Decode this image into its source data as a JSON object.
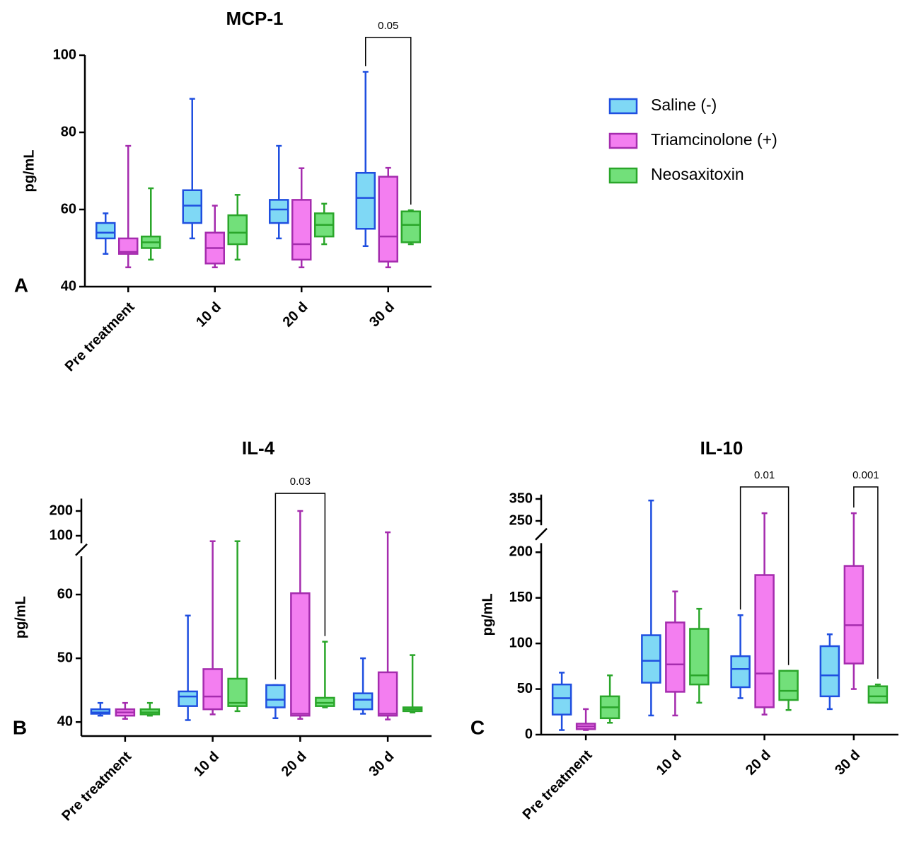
{
  "chart_data": [
    {
      "type": "box",
      "panel": "A",
      "title": "MCP-1",
      "ylabel": "pg/mL",
      "categories": [
        "Pre treatment",
        "10 d",
        "20 d",
        "30 d"
      ],
      "segments": [
        {
          "ylim": [
            40,
            100
          ],
          "yticks": [
            40,
            60,
            80,
            100
          ]
        }
      ],
      "series": [
        {
          "name": "Saline (-)",
          "color": "#7fd8f5",
          "edge": "#1f4fe0",
          "values": [
            {
              "min": 48.5,
              "q1": 52.5,
              "median": 54,
              "q3": 56.5,
              "max": 59
            },
            {
              "min": 52.5,
              "q1": 56.5,
              "median": 61,
              "q3": 65,
              "max": 88.7
            },
            {
              "min": 52.5,
              "q1": 56.5,
              "median": 60,
              "q3": 62.5,
              "max": 76.5
            },
            {
              "min": 50.5,
              "q1": 55,
              "median": 63,
              "q3": 69.5,
              "max": 95.7
            }
          ]
        },
        {
          "name": "Triamcinolone (+)",
          "color": "#f37ef0",
          "edge": "#a52cae",
          "values": [
            {
              "min": 45,
              "q1": 48.5,
              "median": 49,
              "q3": 52.5,
              "max": 76.5
            },
            {
              "min": 45,
              "q1": 46,
              "median": 50,
              "q3": 54,
              "max": 61
            },
            {
              "min": 45,
              "q1": 47,
              "median": 51,
              "q3": 62.5,
              "max": 70.7
            },
            {
              "min": 45,
              "q1": 46.5,
              "median": 53,
              "q3": 68.5,
              "max": 70.8
            }
          ]
        },
        {
          "name": "Neosaxitoxin",
          "color": "#72e07a",
          "edge": "#2aa62a",
          "values": [
            {
              "min": 47,
              "q1": 50,
              "median": 51.5,
              "q3": 53,
              "max": 65.5
            },
            {
              "min": 47,
              "q1": 51,
              "median": 54,
              "q3": 58.5,
              "max": 63.8
            },
            {
              "min": 51,
              "q1": 53,
              "median": 56,
              "q3": 59,
              "max": 61.5
            },
            {
              "min": 51,
              "q1": 51.5,
              "median": 56,
              "q3": 59.5,
              "max": 59.8
            }
          ]
        }
      ],
      "annotations": [
        {
          "text": "0.05",
          "category": 3,
          "from": 0,
          "to": 2,
          "y": 104.6
        }
      ]
    },
    {
      "type": "box",
      "panel": "B",
      "title": "IL-4",
      "ylabel": "pg/mL",
      "categories": [
        "Pre treatment",
        "10 d",
        "20 d",
        "30 d"
      ],
      "segments": [
        {
          "ylim": [
            37.8,
            66
          ],
          "yticks": [
            40,
            50,
            60
          ]
        },
        {
          "ylim": [
            70,
            250
          ],
          "yticks": [
            100,
            200
          ]
        }
      ],
      "series": [
        {
          "color": "#7fd8f5",
          "edge": "#1f4fe0",
          "values": [
            {
              "min": 41,
              "q1": 41.3,
              "median": 41.5,
              "q3": 42,
              "max": 43
            },
            {
              "min": 40.3,
              "q1": 42.5,
              "median": 44,
              "q3": 44.8,
              "max": 56.7
            },
            {
              "min": 40.6,
              "q1": 42.3,
              "median": 43.5,
              "q3": 45.8,
              "max": 45.8
            },
            {
              "min": 41.3,
              "q1": 42,
              "median": 43.5,
              "q3": 44.5,
              "max": 50
            }
          ]
        },
        {
          "color": "#f37ef0",
          "edge": "#a52cae",
          "values": [
            {
              "min": 40.5,
              "q1": 41,
              "median": 41.5,
              "q3": 42,
              "max": 43
            },
            {
              "min": 41.2,
              "q1": 42,
              "median": 44,
              "q3": 48.3,
              "max": 78
            },
            {
              "min": 40.5,
              "q1": 41,
              "median": 41.3,
              "q3": 60.2,
              "max": 200
            },
            {
              "min": 40.4,
              "q1": 41,
              "median": 41.3,
              "q3": 47.8,
              "max": 114
            }
          ]
        },
        {
          "color": "#72e07a",
          "edge": "#2aa62a",
          "values": [
            {
              "min": 41,
              "q1": 41.2,
              "median": 41.5,
              "q3": 42,
              "max": 43
            },
            {
              "min": 41.7,
              "q1": 42.5,
              "median": 43,
              "q3": 46.8,
              "max": 78
            },
            {
              "min": 42.3,
              "q1": 42.5,
              "median": 43,
              "q3": 43.8,
              "max": 52.6
            },
            {
              "min": 41.5,
              "q1": 41.7,
              "median": 42,
              "q3": 42.3,
              "max": 50.5
            }
          ]
        }
      ],
      "annotations": [
        {
          "text": "0.03",
          "category": 2,
          "from": 0,
          "to": 2,
          "y": 271
        }
      ]
    },
    {
      "type": "box",
      "panel": "C",
      "title": "IL-10",
      "ylabel": "pg/mL",
      "categories": [
        "Pre treatment",
        "10 d",
        "20 d",
        "30 d"
      ],
      "segments": [
        {
          "ylim": [
            0,
            210
          ],
          "yticks": [
            0,
            50,
            100,
            150,
            200
          ]
        },
        {
          "ylim": [
            230,
            370
          ],
          "yticks": [
            250,
            350
          ]
        }
      ],
      "series": [
        {
          "color": "#7fd8f5",
          "edge": "#1f4fe0",
          "values": [
            {
              "min": 5,
              "q1": 22,
              "median": 40,
              "q3": 55,
              "max": 68
            },
            {
              "min": 21,
              "q1": 57,
              "median": 81,
              "q3": 109,
              "max": 343
            },
            {
              "min": 40,
              "q1": 52,
              "median": 72,
              "q3": 86,
              "max": 131
            },
            {
              "min": 28,
              "q1": 42,
              "median": 65,
              "q3": 97,
              "max": 110
            }
          ]
        },
        {
          "color": "#f37ef0",
          "edge": "#a52cae",
          "values": [
            {
              "min": 5,
              "q1": 6,
              "median": 9,
              "q3": 12,
              "max": 28
            },
            {
              "min": 21,
              "q1": 47,
              "median": 77,
              "q3": 123,
              "max": 157
            },
            {
              "min": 22,
              "q1": 30,
              "median": 67,
              "q3": 175,
              "max": 285
            },
            {
              "min": 50,
              "q1": 78,
              "median": 120,
              "q3": 185,
              "max": 285
            }
          ]
        },
        {
          "color": "#72e07a",
          "edge": "#2aa62a",
          "values": [
            {
              "min": 13,
              "q1": 18,
              "median": 30,
              "q3": 42,
              "max": 65
            },
            {
              "min": 35,
              "q1": 55,
              "median": 65,
              "q3": 116,
              "max": 138
            },
            {
              "min": 27,
              "q1": 38,
              "median": 48,
              "q3": 70,
              "max": 70
            },
            {
              "min": 35,
              "q1": 35,
              "median": 42,
              "q3": 53,
              "max": 55
            }
          ]
        }
      ],
      "annotations": [
        {
          "text": "0.01",
          "category": 2,
          "from": 0,
          "to": 2,
          "y": 405
        },
        {
          "text": "0.001",
          "category": 3,
          "from": 1,
          "to": 2,
          "y": 405
        }
      ]
    }
  ]
}
